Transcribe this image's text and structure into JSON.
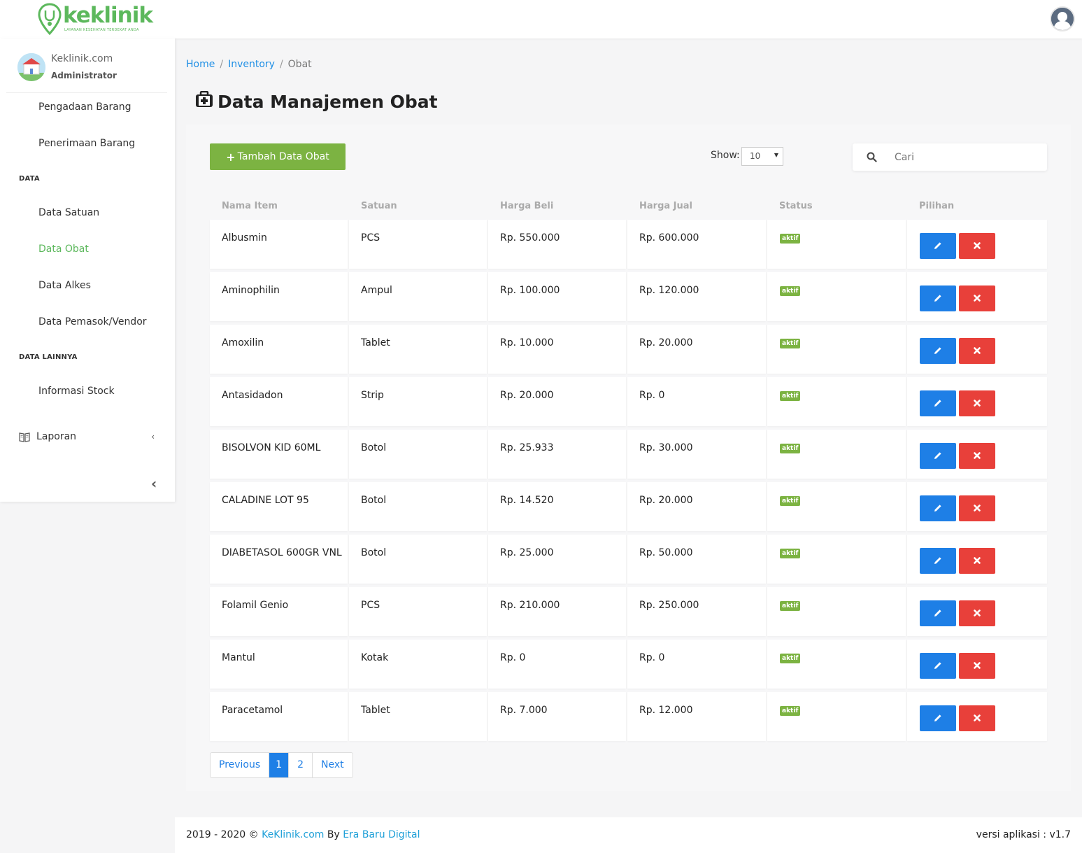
{
  "brand": {
    "name": "keklinik",
    "tagline": "LAYANAN KESEHATAN TERDEKAT ANDA",
    "color": "#5cb85c"
  },
  "header": {
    "user_icon": "user-avatar-icon"
  },
  "profile": {
    "name": "Keklinik.com",
    "role": "Administrator"
  },
  "sidebar": {
    "items": [
      {
        "label": "Pengadaan Barang"
      },
      {
        "label": "Penerimaan Barang"
      },
      {
        "label": "DATA"
      },
      {
        "label": "Data Satuan"
      },
      {
        "label": "Data Obat",
        "active": true
      },
      {
        "label": "Data Alkes"
      },
      {
        "label": "Data Pemasok/Vendor"
      },
      {
        "label": "DATA LAINNYA"
      },
      {
        "label": "Informasi Stock"
      },
      {
        "label": "Laporan",
        "icon": "book-icon"
      }
    ],
    "chevron": "‹",
    "collapse": "‹"
  },
  "breadcrumb": {
    "home": "Home",
    "inventory": "Inventory",
    "current": "Obat",
    "sep": "/"
  },
  "page": {
    "title": "Data Manajemen Obat",
    "icon": "medkit-icon"
  },
  "toolbar": {
    "add_label": "Tambah Data Obat",
    "show_label": "Show:",
    "show_value": "10",
    "search_placeholder": "Cari"
  },
  "table": {
    "columns": [
      "Nama Item",
      "Satuan",
      "Harga Beli",
      "Harga Jual",
      "Status",
      "Pilihan"
    ],
    "rows": [
      {
        "nama": "Albusmin",
        "satuan": "PCS",
        "beli": "Rp. 550.000",
        "jual": "Rp. 600.000",
        "status": "aktif"
      },
      {
        "nama": "Aminophilin",
        "satuan": "Ampul",
        "beli": "Rp. 100.000",
        "jual": "Rp. 120.000",
        "status": "aktif"
      },
      {
        "nama": "Amoxilin",
        "satuan": "Tablet",
        "beli": "Rp. 10.000",
        "jual": "Rp. 20.000",
        "status": "aktif"
      },
      {
        "nama": "Antasidadon",
        "satuan": "Strip",
        "beli": "Rp. 20.000",
        "jual": "Rp. 0",
        "status": "aktif"
      },
      {
        "nama": "BISOLVON KID 60ML",
        "satuan": "Botol",
        "beli": "Rp. 25.933",
        "jual": "Rp. 30.000",
        "status": "aktif"
      },
      {
        "nama": "CALADINE LOT 95",
        "satuan": "Botol",
        "beli": "Rp. 14.520",
        "jual": "Rp. 20.000",
        "status": "aktif"
      },
      {
        "nama": "DIABETASOL 600GR VNL",
        "satuan": "Botol",
        "beli": "Rp. 25.000",
        "jual": "Rp. 50.000",
        "status": "aktif"
      },
      {
        "nama": "Folamil Genio",
        "satuan": "PCS",
        "beli": "Rp. 210.000",
        "jual": "Rp. 250.000",
        "status": "aktif"
      },
      {
        "nama": "Mantul",
        "satuan": "Kotak",
        "beli": "Rp. 0",
        "jual": "Rp. 0",
        "status": "aktif"
      },
      {
        "nama": "Paracetamol",
        "satuan": "Tablet",
        "beli": "Rp. 7.000",
        "jual": "Rp. 12.000",
        "status": "aktif"
      }
    ]
  },
  "pagination": {
    "previous": "Previous",
    "pages": [
      "1",
      "2"
    ],
    "current": "1",
    "next": "Next"
  },
  "footer": {
    "copyright": "2019 - 2020 ©",
    "site_link": "KeKlinik.com",
    "by": "By",
    "company_link": "Era Baru Digital",
    "version": "versi aplikasi : v1.7"
  },
  "colors": {
    "accent_green": "#7cb342",
    "primary_blue": "#1e7fe6",
    "danger_red": "#e8403a"
  }
}
